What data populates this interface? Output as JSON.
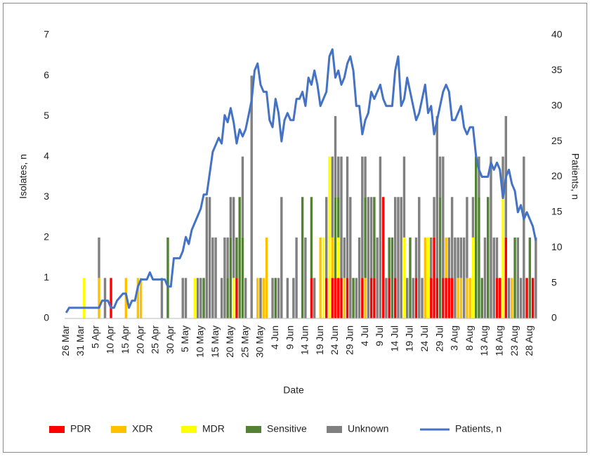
{
  "chart_data": {
    "type": "bar",
    "stacked": true,
    "legend": "bottom",
    "x_label": "Date",
    "y_label": "Isolates, n",
    "y2_label": "Patients, n",
    "ylim": [
      0,
      7
    ],
    "yticks": [
      0,
      1,
      2,
      3,
      4,
      5,
      6,
      7
    ],
    "y2lim": [
      0,
      40
    ],
    "y2ticks": [
      0,
      5,
      10,
      15,
      20,
      25,
      30,
      35,
      40
    ],
    "categories": [
      "26 Mar",
      null,
      null,
      null,
      null,
      "31 Mar",
      null,
      null,
      null,
      null,
      "5 Apr",
      null,
      null,
      null,
      null,
      "10 Apr",
      null,
      null,
      null,
      null,
      "15 Apr",
      null,
      null,
      null,
      null,
      "20 Apr",
      null,
      null,
      null,
      null,
      "25 Apr",
      null,
      null,
      null,
      null,
      "30 Apr",
      null,
      null,
      null,
      null,
      "5 May",
      null,
      null,
      null,
      null,
      "10 May",
      null,
      null,
      null,
      null,
      "15 May",
      null,
      null,
      null,
      null,
      "20 May",
      null,
      null,
      null,
      null,
      "25 May",
      null,
      null,
      null,
      null,
      "30 May",
      null,
      null,
      null,
      null,
      "4 Jun",
      null,
      null,
      null,
      null,
      "9 Jun",
      null,
      null,
      null,
      null,
      "14 Jun",
      null,
      null,
      null,
      null,
      "19 Jun",
      null,
      null,
      null,
      null,
      "24 Jun",
      null,
      null,
      null,
      null,
      "29 Jun",
      null,
      null,
      null,
      null,
      "4 Jul",
      null,
      null,
      null,
      null,
      "9 Jul",
      null,
      null,
      null,
      null,
      "14 Jul",
      null,
      null,
      null,
      null,
      "19 Jul",
      null,
      null,
      null,
      null,
      "24 Jul",
      null,
      null,
      null,
      null,
      "29 Jul",
      null,
      null,
      null,
      null,
      "3 Aug",
      null,
      null,
      null,
      null,
      "8 Aug",
      null,
      null,
      null,
      null,
      "13 Aug",
      null,
      null,
      null,
      null,
      "18 Aug",
      null,
      null,
      null,
      null,
      "23 Aug",
      null,
      null,
      null,
      null,
      "28 Aug",
      null,
      null
    ],
    "series": [
      {
        "name": "PDR",
        "color": "#ff0000",
        "values": [
          0,
          0,
          0,
          0,
          0,
          0,
          0,
          0,
          0,
          0,
          0,
          0,
          0,
          0,
          0,
          1,
          0,
          0,
          0,
          0,
          0,
          0,
          0,
          0,
          0,
          0,
          0,
          0,
          0,
          0,
          0,
          0,
          0,
          0,
          0,
          0,
          0,
          0,
          0,
          0,
          0,
          0,
          0,
          0,
          0,
          0,
          0,
          0,
          0,
          0,
          0,
          0,
          0,
          0,
          0,
          0,
          0,
          1,
          0,
          0,
          0,
          0,
          0,
          0,
          0,
          0,
          0,
          0,
          0,
          0,
          0,
          0,
          0,
          0,
          0,
          0,
          0,
          0,
          0,
          0,
          0,
          0,
          1,
          0,
          0,
          0,
          0,
          1,
          0,
          1,
          1,
          1,
          1,
          0,
          1,
          0,
          0,
          0,
          0,
          1,
          0,
          0,
          1,
          1,
          0,
          0,
          3,
          0,
          1,
          0,
          1,
          0,
          0,
          0,
          0,
          0,
          0,
          1,
          0,
          0,
          0,
          0,
          1,
          2,
          1,
          0,
          1,
          1,
          1,
          1,
          0,
          0,
          0,
          0,
          0,
          0,
          0,
          0,
          0,
          0,
          0,
          0,
          0,
          0,
          1,
          1,
          0,
          2,
          0,
          0,
          0,
          0,
          0,
          0,
          1,
          0,
          1,
          0
        ]
      },
      {
        "name": "XDR",
        "color": "#ffc000",
        "values": [
          0,
          0,
          0,
          0,
          0,
          0,
          0,
          0,
          0,
          0,
          0,
          1,
          0,
          0,
          0,
          0,
          0,
          0,
          0,
          0,
          1,
          0,
          0,
          0,
          1,
          1,
          0,
          0,
          0,
          0,
          0,
          0,
          0,
          0,
          0,
          0,
          0,
          0,
          0,
          0,
          0,
          0,
          0,
          0,
          0,
          0,
          0,
          0,
          0,
          0,
          0,
          0,
          0,
          0,
          0,
          0,
          0,
          0,
          0,
          0,
          0,
          0,
          0,
          0,
          1,
          0,
          1,
          2,
          0,
          0,
          0,
          0,
          0,
          0,
          0,
          0,
          0,
          0,
          0,
          0,
          0,
          0,
          0,
          0,
          0,
          2,
          0,
          0,
          0,
          1,
          0,
          0,
          0,
          1,
          0,
          0,
          0,
          0,
          0,
          0,
          1,
          0,
          0,
          0,
          0,
          0,
          0,
          0,
          0,
          0,
          0,
          0,
          0,
          0,
          0,
          0,
          0,
          0,
          0,
          0,
          2,
          0,
          0,
          0,
          0,
          0,
          0,
          1,
          0,
          0,
          0,
          1,
          1,
          0,
          1,
          1,
          0,
          0,
          0,
          0,
          0,
          0,
          0,
          0,
          0,
          0,
          0,
          0,
          0,
          1,
          0,
          0,
          0,
          0,
          0,
          0,
          0,
          0
        ]
      },
      {
        "name": "MDR",
        "color": "#ffff00",
        "values": [
          0,
          0,
          0,
          0,
          0,
          0,
          1,
          0,
          0,
          0,
          0,
          0,
          0,
          0,
          0,
          0,
          0,
          0,
          0,
          0,
          0,
          0,
          0,
          0,
          0,
          0,
          0,
          0,
          0,
          0,
          0,
          0,
          0,
          0,
          0,
          0,
          0,
          0,
          0,
          0,
          0,
          0,
          0,
          1,
          0,
          0,
          0,
          0,
          0,
          0,
          0,
          0,
          0,
          0,
          0,
          0,
          1,
          0,
          0,
          0,
          0,
          0,
          0,
          0,
          0,
          0,
          0,
          0,
          0,
          0,
          0,
          0,
          0,
          0,
          0,
          0,
          0,
          0,
          0,
          0,
          0,
          0,
          0,
          0,
          0,
          0,
          2,
          0,
          4,
          0,
          0,
          1,
          0,
          0,
          0,
          0,
          0,
          0,
          0,
          0,
          0,
          0,
          0,
          0,
          0,
          0,
          0,
          0,
          0,
          0,
          0,
          0,
          0,
          2,
          0,
          0,
          0,
          0,
          0,
          0,
          0,
          2,
          0,
          0,
          0,
          0,
          0,
          0,
          0,
          0,
          0,
          0,
          0,
          0,
          0,
          0,
          2,
          0,
          0,
          0,
          0,
          0,
          0,
          0,
          0,
          0,
          3,
          0,
          0,
          0,
          0,
          0,
          0,
          0,
          0,
          0,
          0,
          0
        ]
      },
      {
        "name": "Sensitive",
        "color": "#548235",
        "values": [
          0,
          0,
          0,
          0,
          0,
          0,
          0,
          0,
          0,
          0,
          0,
          0,
          0,
          0,
          0,
          0,
          0,
          0,
          0,
          0,
          0,
          0,
          0,
          0,
          0,
          0,
          0,
          0,
          0,
          0,
          0,
          0,
          0,
          0,
          2,
          0,
          0,
          0,
          0,
          0,
          0,
          0,
          0,
          0,
          0,
          0,
          1,
          0,
          0,
          0,
          0,
          0,
          0,
          0,
          1,
          2,
          0,
          1,
          3,
          2,
          0,
          0,
          0,
          0,
          0,
          0,
          0,
          0,
          0,
          0,
          1,
          0,
          0,
          0,
          0,
          0,
          0,
          0,
          0,
          3,
          0,
          0,
          2,
          0,
          0,
          0,
          0,
          0,
          0,
          0,
          2,
          1,
          0,
          0,
          0,
          0,
          1,
          0,
          0,
          0,
          2,
          0,
          0,
          2,
          0,
          0,
          0,
          0,
          1,
          2,
          0,
          0,
          0,
          0,
          0,
          2,
          0,
          0,
          0,
          0,
          0,
          0,
          0,
          0,
          0,
          3,
          0,
          0,
          0,
          0,
          0,
          0,
          0,
          0,
          0,
          0,
          0,
          4,
          3,
          1,
          0,
          3,
          0,
          0,
          0,
          0,
          0,
          0,
          0,
          0,
          2,
          0,
          0,
          0,
          0,
          2,
          0,
          0
        ]
      },
      {
        "name": "Unknown",
        "color": "#808080",
        "values": [
          0,
          0,
          0,
          0,
          0,
          0,
          0,
          0,
          0,
          0,
          0,
          1,
          0,
          1,
          0,
          0,
          0,
          0,
          0,
          0,
          0,
          0,
          0,
          0,
          0,
          0,
          0,
          0,
          0,
          0,
          0,
          0,
          1,
          0,
          0,
          0,
          0,
          0,
          0,
          1,
          1,
          0,
          0,
          0,
          1,
          1,
          0,
          3,
          3,
          2,
          2,
          0,
          1,
          2,
          1,
          1,
          2,
          0,
          0,
          2,
          1,
          0,
          6,
          0,
          0,
          1,
          0,
          0,
          0,
          1,
          0,
          1,
          3,
          0,
          1,
          0,
          1,
          2,
          0,
          0,
          2,
          0,
          0,
          1,
          0,
          0,
          0,
          2,
          0,
          2,
          2,
          1,
          3,
          1,
          3,
          3,
          0,
          1,
          2,
          3,
          1,
          3,
          2,
          0,
          2,
          4,
          0,
          1,
          0,
          0,
          2,
          3,
          3,
          2,
          1,
          0,
          1,
          1,
          3,
          1,
          0,
          0,
          1,
          1,
          4,
          1,
          3,
          0,
          1,
          2,
          2,
          1,
          1,
          2,
          2,
          0,
          1,
          0,
          1,
          0,
          2,
          0,
          4,
          2,
          1,
          0,
          1,
          3,
          1,
          0,
          0,
          2,
          1,
          4,
          0,
          0,
          0,
          2
        ]
      },
      {
        "name": "Patients, n",
        "type": "line",
        "axis": "y2",
        "color": "#4472c4",
        "values": [
          0.8,
          1.5,
          1.5,
          1.5,
          1.5,
          1.5,
          1.5,
          1.5,
          1.5,
          1.5,
          1.5,
          1.5,
          2.5,
          2.5,
          2.5,
          1.5,
          1.5,
          2.5,
          3,
          3.5,
          3.5,
          1.5,
          2.5,
          2.5,
          4.5,
          5.5,
          5.5,
          5.5,
          6.5,
          5.5,
          5.5,
          5.5,
          5.5,
          5.5,
          4.5,
          4.5,
          8.5,
          8.5,
          8.5,
          9.5,
          11.5,
          10.5,
          12.5,
          13.5,
          14.5,
          15.5,
          17.5,
          17.5,
          20.5,
          23.5,
          24.5,
          25.5,
          24.7,
          28.7,
          27.7,
          29.7,
          27.7,
          24.7,
          26.7,
          25.7,
          26.7,
          28.7,
          30.8,
          35,
          36,
          33,
          32,
          32,
          28,
          27,
          31,
          29,
          25,
          28,
          29,
          28,
          28,
          31,
          31,
          32,
          30,
          34,
          33,
          35,
          33,
          30,
          31,
          32,
          37,
          38,
          34,
          35,
          33,
          34,
          36,
          37,
          35,
          30,
          30,
          26,
          28,
          29,
          32,
          31,
          32,
          33,
          31,
          30,
          30,
          30,
          35,
          37,
          30,
          31,
          34,
          32,
          30,
          28,
          29,
          31,
          33,
          29,
          30,
          26,
          28,
          30,
          32,
          33,
          32,
          28,
          28,
          29,
          30,
          27,
          26,
          27,
          27,
          23,
          21,
          20,
          20,
          20,
          22,
          21,
          22,
          21,
          17,
          20,
          21,
          19,
          18,
          15,
          16,
          14,
          15,
          14,
          13,
          11
        ]
      }
    ]
  }
}
